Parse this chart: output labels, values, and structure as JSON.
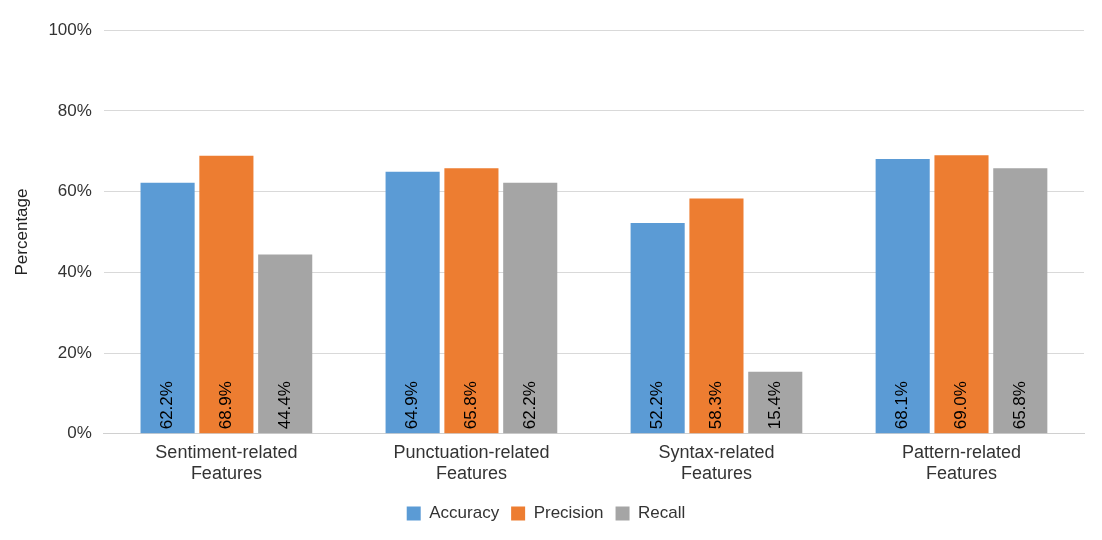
{
  "chart_data": {
    "type": "bar",
    "ylabel": "Percentage",
    "categories": [
      "Sentiment-related Features",
      "Punctuation-related Features",
      "Syntax-related Features",
      "Pattern-related Features"
    ],
    "series": [
      {
        "name": "Accuracy",
        "color": "#5b9bd5",
        "values": [
          62.2,
          64.9,
          52.2,
          68.1
        ],
        "value_labels": [
          "62.2%",
          "64.9%",
          "52.2%",
          "68.1%"
        ]
      },
      {
        "name": "Precision",
        "color": "#ed7d31",
        "values": [
          68.9,
          65.8,
          58.3,
          69.0
        ],
        "value_labels": [
          "68.9%",
          "65.8%",
          "58.3%",
          "69.0%"
        ]
      },
      {
        "name": "Recall",
        "color": "#a5a5a5",
        "values": [
          44.4,
          62.2,
          15.4,
          65.8
        ],
        "value_labels": [
          "44.4%",
          "62.2%",
          "15.4%",
          "65.8%"
        ]
      }
    ],
    "ylim": [
      0,
      100
    ],
    "yticks": [
      {
        "value": 0,
        "label": "0%"
      },
      {
        "value": 20,
        "label": "20%"
      },
      {
        "value": 40,
        "label": "40%"
      },
      {
        "value": 60,
        "label": "60%"
      },
      {
        "value": 80,
        "label": "80%"
      },
      {
        "value": 100,
        "label": "100%"
      }
    ],
    "grid": "y",
    "legend": "bottom"
  }
}
